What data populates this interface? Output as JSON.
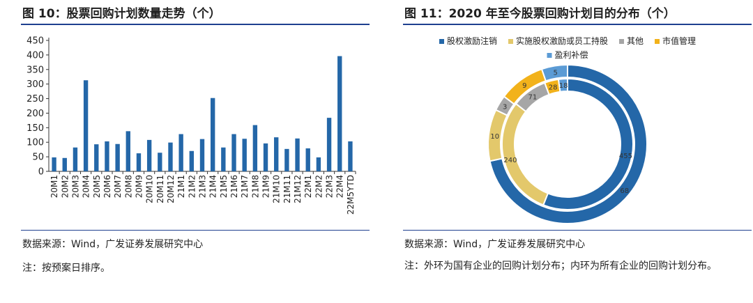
{
  "left": {
    "title": "图 10：股票回购计划数量走势（个）",
    "source": "数据来源：Wind，广发证券发展研究中心",
    "note": "注：按预案日排序。"
  },
  "right": {
    "title": "图 11：2020 年至今股票回购计划目的分布（个）",
    "source": "数据来源：Wind，广发证券发展研究中心",
    "note": "注：外环为国有企业的回购计划分布；内环为所有企业的回购计划分布。"
  },
  "colors": {
    "bar": "#2467a8",
    "rule": "#1e3f8f"
  },
  "chart_data": [
    {
      "type": "bar",
      "title": "",
      "xlabel": "",
      "ylabel": "",
      "ylim": [
        0,
        450
      ],
      "yticks": [
        0,
        50,
        100,
        150,
        200,
        250,
        300,
        350,
        400,
        450
      ],
      "grid": false,
      "categories": [
        "20M1",
        "20M2",
        "20M3",
        "20M4",
        "20M5",
        "20M6",
        "20M7",
        "20M8",
        "20M9",
        "20M10",
        "20M11",
        "20M12",
        "21M1",
        "21M2",
        "21M3",
        "21M4",
        "21M5",
        "21M6",
        "21M7",
        "21M8",
        "21M9",
        "21M10",
        "21M11",
        "21M12",
        "22M1",
        "22M2",
        "22M3",
        "22M4",
        "22M5YTD"
      ],
      "values": [
        48,
        46,
        82,
        313,
        93,
        103,
        94,
        138,
        62,
        108,
        64,
        99,
        128,
        70,
        111,
        252,
        82,
        128,
        112,
        159,
        96,
        117,
        77,
        113,
        79,
        48,
        184,
        396,
        103
      ]
    },
    {
      "type": "pie",
      "subtype": "double-donut",
      "legend_position": "top",
      "categories": [
        "股权激励注销",
        "实施股权激励或员工持股",
        "其他",
        "市值管理",
        "盈利补偿"
      ],
      "colors": [
        "#2467a8",
        "#e3c86b",
        "#a6a6a6",
        "#f2b21b",
        "#5b9bd5"
      ],
      "series": [
        {
          "ring": "outer",
          "values": [
            68,
            10,
            3,
            9,
            5
          ]
        },
        {
          "ring": "inner",
          "values": [
            455,
            240,
            71,
            28,
            18
          ]
        }
      ]
    }
  ]
}
